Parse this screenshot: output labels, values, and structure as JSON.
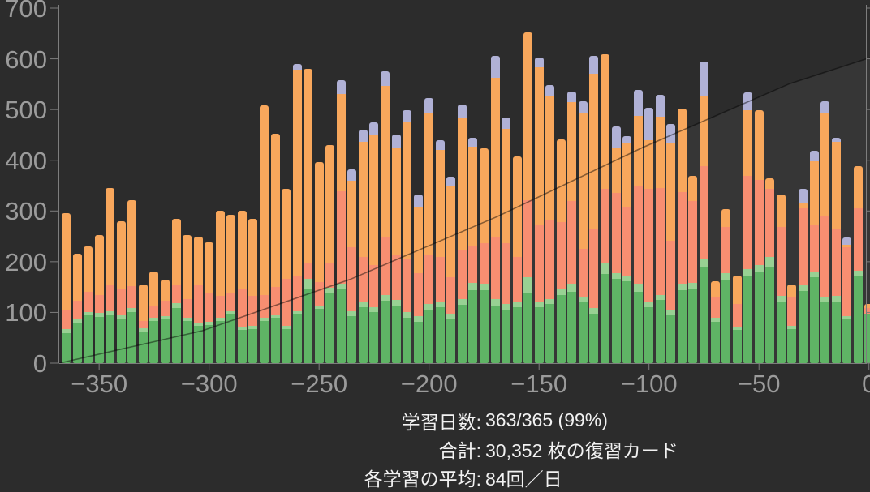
{
  "colors": {
    "background": "#2c2c2c",
    "axis": "#7d7d7d",
    "axis_text": "#9b9b9b",
    "stats_text": "#f2f2f2",
    "cumulative_line": "rgba(0,0,0,0.45)",
    "cumulative_fill": "rgba(255,255,255,0.05)"
  },
  "summary": {
    "rows": [
      {
        "label": "学習日数:",
        "value": "363/365 (99%)"
      },
      {
        "label": "合計:",
        "value": "30,352 枚の復習カード"
      },
      {
        "label": "各学習の平均:",
        "value": "84回／日"
      }
    ]
  },
  "chart_data": {
    "type": "bar",
    "stacked": true,
    "title": "",
    "xlabel": "",
    "ylabel": "",
    "xlim": [
      -365,
      0
    ],
    "ylim": [
      0,
      700
    ],
    "grid": false,
    "legend": "none",
    "y_ticks": [
      0,
      100,
      200,
      300,
      400,
      500,
      600,
      700
    ],
    "x_ticks": [
      {
        "day": -350,
        "label": "−350"
      },
      {
        "day": -300,
        "label": "−300"
      },
      {
        "day": -250,
        "label": "−250"
      },
      {
        "day": -200,
        "label": "−200"
      },
      {
        "day": -150,
        "label": "−150"
      },
      {
        "day": -100,
        "label": "−100"
      },
      {
        "day": -50,
        "label": "−50"
      },
      {
        "day": 0,
        "label": "0"
      }
    ],
    "series_order": [
      "mature",
      "young",
      "relearn",
      "learn",
      "filtered"
    ],
    "series_colors": {
      "mature": "#5fb465",
      "young": "#98d193",
      "relearn": "#f88e71",
      "learn": "#f8a75c",
      "filtered": "#b0b1d6"
    },
    "bin_days": 5,
    "bars": [
      {
        "day": -365,
        "mature": 60,
        "young": 8,
        "relearn": 37,
        "learn": 190,
        "filtered": 0
      },
      {
        "day": -360,
        "mature": 80,
        "young": 8,
        "relearn": 35,
        "learn": 92,
        "filtered": 0
      },
      {
        "day": -355,
        "mature": 94,
        "young": 6,
        "relearn": 40,
        "learn": 90,
        "filtered": 0
      },
      {
        "day": -350,
        "mature": 91,
        "young": 8,
        "relearn": 35,
        "learn": 118,
        "filtered": 0
      },
      {
        "day": -345,
        "mature": 95,
        "young": 8,
        "relearn": 51,
        "learn": 191,
        "filtered": 0
      },
      {
        "day": -340,
        "mature": 86,
        "young": 8,
        "relearn": 52,
        "learn": 134,
        "filtered": 0
      },
      {
        "day": -335,
        "mature": 101,
        "young": 8,
        "relearn": 43,
        "learn": 170,
        "filtered": 0
      },
      {
        "day": -330,
        "mature": 62,
        "young": 6,
        "relearn": 15,
        "learn": 72,
        "filtered": 0
      },
      {
        "day": -325,
        "mature": 83,
        "young": 6,
        "relearn": 25,
        "learn": 66,
        "filtered": 0
      },
      {
        "day": -320,
        "mature": 87,
        "young": 6,
        "relearn": 30,
        "learn": 42,
        "filtered": 0
      },
      {
        "day": -315,
        "mature": 109,
        "young": 10,
        "relearn": 36,
        "learn": 130,
        "filtered": 0
      },
      {
        "day": -310,
        "mature": 83,
        "young": 6,
        "relearn": 38,
        "learn": 125,
        "filtered": 0
      },
      {
        "day": -305,
        "mature": 73,
        "young": 6,
        "relearn": 75,
        "learn": 96,
        "filtered": 0
      },
      {
        "day": -300,
        "mature": 75,
        "young": 6,
        "relearn": 57,
        "learn": 100,
        "filtered": 0
      },
      {
        "day": -295,
        "mature": 83,
        "young": 6,
        "relearn": 43,
        "learn": 169,
        "filtered": 0
      },
      {
        "day": -290,
        "mature": 97,
        "young": 6,
        "relearn": 35,
        "learn": 155,
        "filtered": 0
      },
      {
        "day": -285,
        "mature": 65,
        "young": 6,
        "relearn": 75,
        "learn": 155,
        "filtered": 0
      },
      {
        "day": -280,
        "mature": 67,
        "young": 6,
        "relearn": 59,
        "learn": 153,
        "filtered": 0
      },
      {
        "day": -275,
        "mature": 83,
        "young": 6,
        "relearn": 46,
        "learn": 373,
        "filtered": 0
      },
      {
        "day": -270,
        "mature": 89,
        "young": 6,
        "relearn": 56,
        "learn": 301,
        "filtered": 0
      },
      {
        "day": -265,
        "mature": 67,
        "young": 6,
        "relearn": 94,
        "learn": 177,
        "filtered": 0
      },
      {
        "day": -260,
        "mature": 97,
        "young": 6,
        "relearn": 69,
        "learn": 407,
        "filtered": 10
      },
      {
        "day": -255,
        "mature": 147,
        "young": 20,
        "relearn": 32,
        "learn": 382,
        "filtered": 0
      },
      {
        "day": -250,
        "mature": 107,
        "young": 6,
        "relearn": 46,
        "learn": 238,
        "filtered": 0
      },
      {
        "day": -245,
        "mature": 138,
        "young": 10,
        "relearn": 48,
        "learn": 234,
        "filtered": 0
      },
      {
        "day": -240,
        "mature": 146,
        "young": 10,
        "relearn": 182,
        "learn": 193,
        "filtered": 27
      },
      {
        "day": -235,
        "mature": 93,
        "young": 10,
        "relearn": 126,
        "learn": 131,
        "filtered": 22
      },
      {
        "day": -230,
        "mature": 111,
        "young": 10,
        "relearn": 89,
        "learn": 226,
        "filtered": 25
      },
      {
        "day": -225,
        "mature": 101,
        "young": 10,
        "relearn": 83,
        "learn": 256,
        "filtered": 25
      },
      {
        "day": -220,
        "mature": 123,
        "young": 12,
        "relearn": 112,
        "learn": 300,
        "filtered": 28
      },
      {
        "day": -215,
        "mature": 114,
        "young": 10,
        "relearn": 91,
        "learn": 211,
        "filtered": 25
      },
      {
        "day": -210,
        "mature": 90,
        "young": 10,
        "relearn": 104,
        "learn": 273,
        "filtered": 22
      },
      {
        "day": -205,
        "mature": 82,
        "young": 10,
        "relearn": 86,
        "learn": 129,
        "filtered": 25
      },
      {
        "day": -200,
        "mature": 106,
        "young": 10,
        "relearn": 96,
        "learn": 281,
        "filtered": 30
      },
      {
        "day": -195,
        "mature": 111,
        "young": 10,
        "relearn": 89,
        "learn": 211,
        "filtered": 18
      },
      {
        "day": -190,
        "mature": 87,
        "young": 10,
        "relearn": 73,
        "learn": 178,
        "filtered": 20
      },
      {
        "day": -185,
        "mature": 115,
        "young": 12,
        "relearn": 96,
        "learn": 262,
        "filtered": 25
      },
      {
        "day": -180,
        "mature": 144,
        "young": 15,
        "relearn": 72,
        "learn": 196,
        "filtered": 18
      },
      {
        "day": -175,
        "mature": 144,
        "young": 12,
        "relearn": 81,
        "learn": 187,
        "filtered": 0
      },
      {
        "day": -170,
        "mature": 112,
        "young": 15,
        "relearn": 120,
        "learn": 316,
        "filtered": 43
      },
      {
        "day": -165,
        "mature": 106,
        "young": 10,
        "relearn": 121,
        "learn": 225,
        "filtered": 22
      },
      {
        "day": -160,
        "mature": 111,
        "young": 10,
        "relearn": 89,
        "learn": 197,
        "filtered": 0
      },
      {
        "day": -155,
        "mature": 138,
        "young": 32,
        "relearn": 152,
        "learn": 331,
        "filtered": 0
      },
      {
        "day": -150,
        "mature": 111,
        "young": 10,
        "relearn": 153,
        "learn": 310,
        "filtered": 19
      },
      {
        "day": -145,
        "mature": 117,
        "young": 10,
        "relearn": 155,
        "learn": 244,
        "filtered": 22
      },
      {
        "day": -140,
        "mature": 134,
        "young": 12,
        "relearn": 133,
        "learn": 162,
        "filtered": 0
      },
      {
        "day": -135,
        "mature": 141,
        "young": 15,
        "relearn": 164,
        "learn": 195,
        "filtered": 21
      },
      {
        "day": -130,
        "mature": 120,
        "young": 10,
        "relearn": 96,
        "learn": 268,
        "filtered": 22
      },
      {
        "day": -125,
        "mature": 98,
        "young": 10,
        "relearn": 158,
        "learn": 305,
        "filtered": 35
      },
      {
        "day": -120,
        "mature": 176,
        "young": 20,
        "relearn": 148,
        "learn": 265,
        "filtered": 0
      },
      {
        "day": -115,
        "mature": 166,
        "young": 12,
        "relearn": 158,
        "learn": 88,
        "filtered": 42
      },
      {
        "day": -110,
        "mature": 162,
        "young": 10,
        "relearn": 137,
        "learn": 126,
        "filtered": 13
      },
      {
        "day": -105,
        "mature": 141,
        "young": 15,
        "relearn": 193,
        "learn": 139,
        "filtered": 50
      },
      {
        "day": -100,
        "mature": 111,
        "young": 10,
        "relearn": 223,
        "learn": 95,
        "filtered": 65
      },
      {
        "day": -95,
        "mature": 125,
        "young": 10,
        "relearn": 211,
        "learn": 140,
        "filtered": 43
      },
      {
        "day": -90,
        "mature": 95,
        "young": 10,
        "relearn": 137,
        "learn": 192,
        "filtered": 38
      },
      {
        "day": -85,
        "mature": 144,
        "young": 12,
        "relearn": 182,
        "learn": 164,
        "filtered": 0
      },
      {
        "day": -80,
        "mature": 147,
        "young": 12,
        "relearn": 161,
        "learn": 50,
        "filtered": 0
      },
      {
        "day": -75,
        "mature": 189,
        "young": 15,
        "relearn": 185,
        "learn": 139,
        "filtered": 67
      },
      {
        "day": -70,
        "mature": 82,
        "young": 7,
        "relearn": 40,
        "learn": 33,
        "filtered": 0
      },
      {
        "day": -65,
        "mature": 163,
        "young": 15,
        "relearn": 91,
        "learn": 35,
        "filtered": 0
      },
      {
        "day": -60,
        "mature": 65,
        "young": 6,
        "relearn": 45,
        "learn": 56,
        "filtered": 0
      },
      {
        "day": -55,
        "mature": 171,
        "young": 15,
        "relearn": 184,
        "learn": 129,
        "filtered": 35
      },
      {
        "day": -50,
        "mature": 179,
        "young": 15,
        "relearn": 168,
        "learn": 137,
        "filtered": 0
      },
      {
        "day": -45,
        "mature": 190,
        "young": 20,
        "relearn": 134,
        "learn": 21,
        "filtered": 0
      },
      {
        "day": -40,
        "mature": 122,
        "young": 10,
        "relearn": 137,
        "learn": 63,
        "filtered": 0
      },
      {
        "day": -35,
        "mature": 67,
        "young": 6,
        "relearn": 57,
        "learn": 25,
        "filtered": 0
      },
      {
        "day": -30,
        "mature": 142,
        "young": 12,
        "relearn": 152,
        "learn": 11,
        "filtered": 27
      },
      {
        "day": -25,
        "mature": 170,
        "young": 10,
        "relearn": 94,
        "learn": 124,
        "filtered": 21
      },
      {
        "day": -20,
        "mature": 120,
        "young": 10,
        "relearn": 160,
        "learn": 204,
        "filtered": 22
      },
      {
        "day": -15,
        "mature": 122,
        "young": 10,
        "relearn": 133,
        "learn": 171,
        "filtered": 8
      },
      {
        "day": -10,
        "mature": 86,
        "young": 6,
        "relearn": 137,
        "learn": 5,
        "filtered": 14
      },
      {
        "day": -5,
        "mature": 172,
        "young": 10,
        "relearn": 124,
        "learn": 83,
        "filtered": 0
      },
      {
        "day": 0,
        "mature": 97,
        "young": 0,
        "relearn": 12,
        "learn": 8,
        "filtered": 0
      }
    ],
    "cumulative_line": {
      "comment": "cumulative reviews, values expressed on the left 0-700 pixel scale",
      "points": [
        [
          -368,
          0
        ],
        [
          -303,
          64
        ],
        [
          -236,
          165
        ],
        [
          -169,
          289
        ],
        [
          -103,
          425
        ],
        [
          -36,
          551
        ],
        [
          6,
          610
        ]
      ]
    }
  }
}
